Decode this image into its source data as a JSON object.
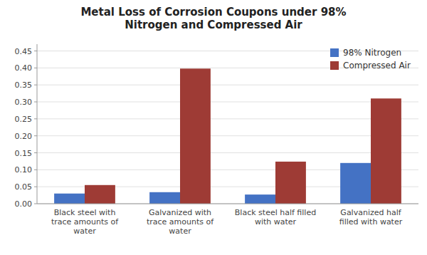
{
  "chart_data": {
    "type": "bar",
    "title": "Metal Loss of Corrosion Coupons under 98%\nNitrogen and Compressed Air",
    "categories": [
      "Black steel with\ntrace amounts of\nwater",
      "Galvanized with\ntrace amounts of\nwater",
      "Black steel half filled\nwith water",
      "Galvanized half\nfilled with water"
    ],
    "series": [
      {
        "name": "98% Nitrogen",
        "color": "#4472C4",
        "values": [
          0.03,
          0.034,
          0.027,
          0.12
        ]
      },
      {
        "name": "Compressed Air",
        "color": "#9E3B35",
        "values": [
          0.055,
          0.398,
          0.124,
          0.31
        ]
      }
    ],
    "ylim": [
      0,
      0.47
    ],
    "yticks": [
      {
        "value": 0,
        "label": "0.00"
      },
      0.05,
      {
        "value": 0.1,
        "label": "0.10"
      },
      0.15,
      {
        "value": 0.2,
        "label": "0.20"
      },
      0.25,
      {
        "value": 0.3,
        "label": "0.30"
      },
      0.35,
      {
        "value": 0.4,
        "label": "0.40"
      },
      0.45
    ],
    "grid": true,
    "legend": "upper right"
  }
}
